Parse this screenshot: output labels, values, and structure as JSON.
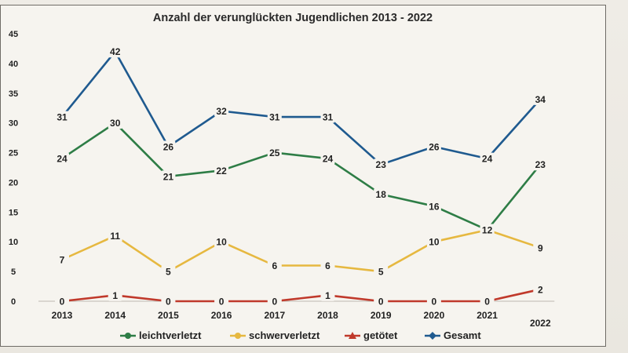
{
  "chart_data": {
    "type": "line",
    "title": "Anzahl der verunglückten Jugendlichen 2013 - 2022",
    "categories": [
      "2013",
      "2014",
      "2015",
      "2016",
      "2017",
      "2018",
      "2019",
      "2020",
      "2021",
      "2022"
    ],
    "y_ticks": [
      "0",
      "5",
      "10",
      "15",
      "20",
      "25",
      "30",
      "35",
      "40",
      "45"
    ],
    "ylim": [
      0,
      45
    ],
    "grid": false,
    "legend_position": "bottom",
    "series": [
      {
        "name": "leichtverletzt",
        "color": "#2e7d46",
        "values": [
          24,
          30,
          21,
          22,
          25,
          24,
          18,
          16,
          12,
          23
        ],
        "labels": [
          "24",
          "30",
          "21",
          "22",
          "25",
          "24",
          "18",
          "16",
          "12",
          "23"
        ]
      },
      {
        "name": "schwerverletzt",
        "color": "#e6b840",
        "values": [
          7,
          11,
          5,
          10,
          6,
          6,
          5,
          10,
          12,
          9
        ],
        "labels": [
          "7",
          "11",
          "5",
          "10",
          "6",
          "6",
          "5",
          "10",
          "12",
          "9"
        ]
      },
      {
        "name": "getötet",
        "color": "#c0392b",
        "values": [
          0,
          1,
          0,
          0,
          0,
          1,
          0,
          0,
          0,
          2
        ],
        "labels": [
          "0",
          "1",
          "0",
          "0",
          "0",
          "1",
          "0",
          "0",
          "0",
          "2"
        ]
      },
      {
        "name": "Gesamt",
        "color": "#1f5a8f",
        "values": [
          31,
          42,
          26,
          32,
          31,
          31,
          23,
          26,
          24,
          34
        ],
        "labels": [
          "31",
          "42",
          "26",
          "32",
          "31",
          "31",
          "23",
          "26",
          "24",
          "34"
        ]
      }
    ]
  }
}
